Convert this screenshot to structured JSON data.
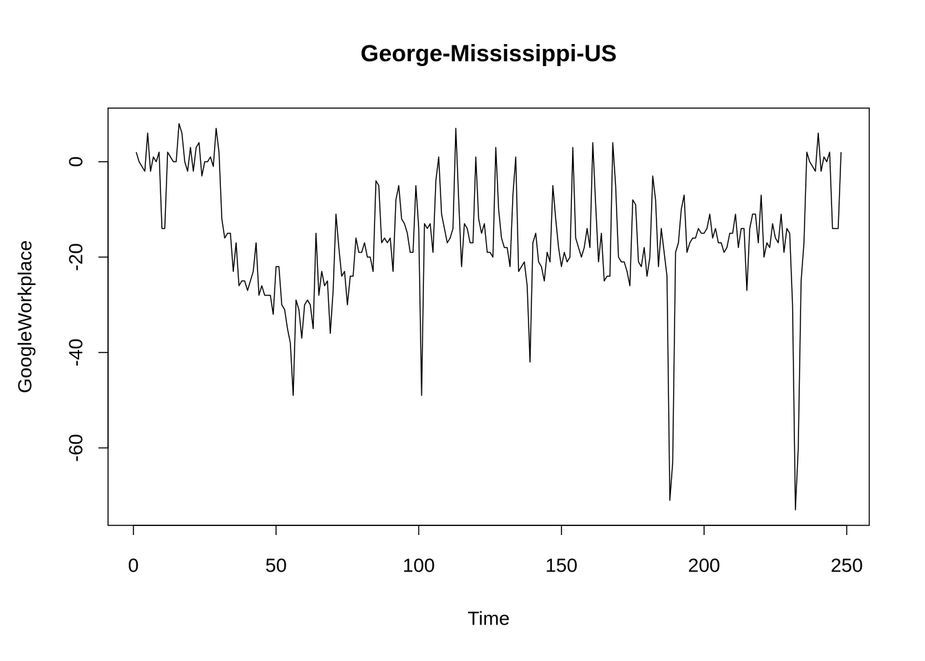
{
  "chart_data": {
    "type": "line",
    "title": "George-Mississippi-US",
    "x_label": "Time",
    "y_label": "GoogleWorkplace",
    "x": [
      1,
      2,
      3,
      4,
      5,
      6,
      7,
      8,
      9,
      10,
      11,
      12,
      13,
      14,
      15,
      16,
      17,
      18,
      19,
      20,
      21,
      22,
      23,
      24,
      25,
      26,
      27,
      28,
      29,
      30,
      31,
      32,
      33,
      34,
      35,
      36,
      37,
      38,
      39,
      40,
      41,
      42,
      43,
      44,
      45,
      46,
      47,
      48,
      49,
      50,
      51,
      52,
      53,
      54,
      55,
      56,
      57,
      58,
      59,
      60,
      61,
      62,
      63,
      64,
      65,
      66,
      67,
      68,
      69,
      70,
      71,
      72,
      73,
      74,
      75,
      76,
      77,
      78,
      79,
      80,
      81,
      82,
      83,
      84,
      85,
      86,
      87,
      88,
      89,
      90,
      91,
      92,
      93,
      94,
      95,
      96,
      97,
      98,
      99,
      100,
      101,
      102,
      103,
      104,
      105,
      106,
      107,
      108,
      109,
      110,
      111,
      112,
      113,
      114,
      115,
      116,
      117,
      118,
      119,
      120,
      121,
      122,
      123,
      124,
      125,
      126,
      127,
      128,
      129,
      130,
      131,
      132,
      133,
      134,
      135,
      136,
      137,
      138,
      139,
      140,
      141,
      142,
      143,
      144,
      145,
      146,
      147,
      148,
      149,
      150,
      151,
      152,
      153,
      154,
      155,
      156,
      157,
      158,
      159,
      160,
      161,
      162,
      163,
      164,
      165,
      166,
      167,
      168,
      169,
      170,
      171,
      172,
      173,
      174,
      175,
      176,
      177,
      178,
      179,
      180,
      181,
      182,
      183,
      184,
      185,
      186,
      187,
      188,
      189,
      190,
      191,
      192,
      193,
      194,
      195,
      196,
      197,
      198,
      199,
      200,
      201,
      202,
      203,
      204,
      205,
      206,
      207,
      208,
      209,
      210,
      211,
      212,
      213,
      214,
      215,
      216,
      217,
      218,
      219,
      220,
      221,
      222,
      223,
      224,
      225,
      226,
      227,
      228,
      229,
      230,
      231,
      232,
      233,
      234,
      235,
      236,
      237,
      238,
      239,
      240,
      241,
      242,
      243,
      244,
      245,
      246,
      247,
      248
    ],
    "series": [
      {
        "color": "#000000",
        "values": [
          2,
          0,
          -1,
          -2,
          6,
          -2,
          1,
          0,
          2,
          -14,
          -14,
          2,
          1,
          0,
          0,
          8,
          6,
          0,
          -2,
          3,
          -2,
          3,
          4,
          -3,
          0,
          0,
          1,
          -1,
          7,
          2,
          -12,
          -16,
          -15,
          -15,
          -23,
          -17,
          -26,
          -25,
          -25,
          -27,
          -25,
          -23,
          -17,
          -28,
          -26,
          -28,
          -28,
          -28,
          -32,
          -22,
          -22,
          -30,
          -31,
          -35,
          -38,
          -49,
          -29,
          -31,
          -37,
          -30,
          -29,
          -30,
          -35,
          -15,
          -28,
          -23,
          -26,
          -25,
          -36,
          -27,
          -11,
          -18,
          -24,
          -23,
          -30,
          -24,
          -24,
          -16,
          -19,
          -19,
          -17,
          -20,
          -20,
          -23,
          -4,
          -5,
          -17,
          -16,
          -17,
          -16,
          -23,
          -8,
          -5,
          -12,
          -13,
          -15,
          -19,
          -19,
          -5,
          -14,
          -49,
          -13,
          -14,
          -13,
          -19,
          -4,
          1,
          -11,
          -14,
          -17,
          -16,
          -14,
          7,
          -8,
          -22,
          -13,
          -14,
          -17,
          -17,
          1,
          -12,
          -15,
          -13,
          -19,
          -19,
          -20,
          3,
          -10,
          -16,
          -18,
          -18,
          -22,
          -7,
          1,
          -23,
          -22,
          -21,
          -26,
          -42,
          -17,
          -15,
          -21,
          -22,
          -25,
          -19,
          -21,
          -5,
          -12,
          -18,
          -22,
          -19,
          -21,
          -20,
          3,
          -16,
          -18,
          -20,
          -18,
          -14,
          -18,
          4,
          -9,
          -21,
          -15,
          -25,
          -24,
          -24,
          4,
          -5,
          -20,
          -21,
          -21,
          -23,
          -26,
          -8,
          -9,
          -21,
          -22,
          -18,
          -24,
          -20,
          -3,
          -8,
          -22,
          -14,
          -19,
          -24,
          -71,
          -63,
          -19,
          -17,
          -10,
          -7,
          -19,
          -17,
          -16,
          -16,
          -14,
          -15,
          -15,
          -14,
          -11,
          -16,
          -14,
          -17,
          -17,
          -19,
          -18,
          -15,
          -15,
          -11,
          -18,
          -14,
          -14,
          -27,
          -14,
          -11,
          -11,
          -17,
          -7,
          -20,
          -17,
          -18,
          -13,
          -16,
          -17,
          -11,
          -19,
          -14,
          -15,
          -30,
          -73,
          -60,
          -25,
          -17,
          2,
          0,
          -1,
          -2,
          6,
          -2,
          1,
          0,
          2,
          -14,
          -14,
          -14,
          2
        ]
      }
    ],
    "xlim": [
      -8.88,
      257.88
    ],
    "ylim": [
      -76.24,
      11.24
    ],
    "xticks": [
      0,
      50,
      100,
      150,
      200,
      250
    ],
    "yticks": [
      -60,
      -40,
      -20,
      0
    ]
  }
}
